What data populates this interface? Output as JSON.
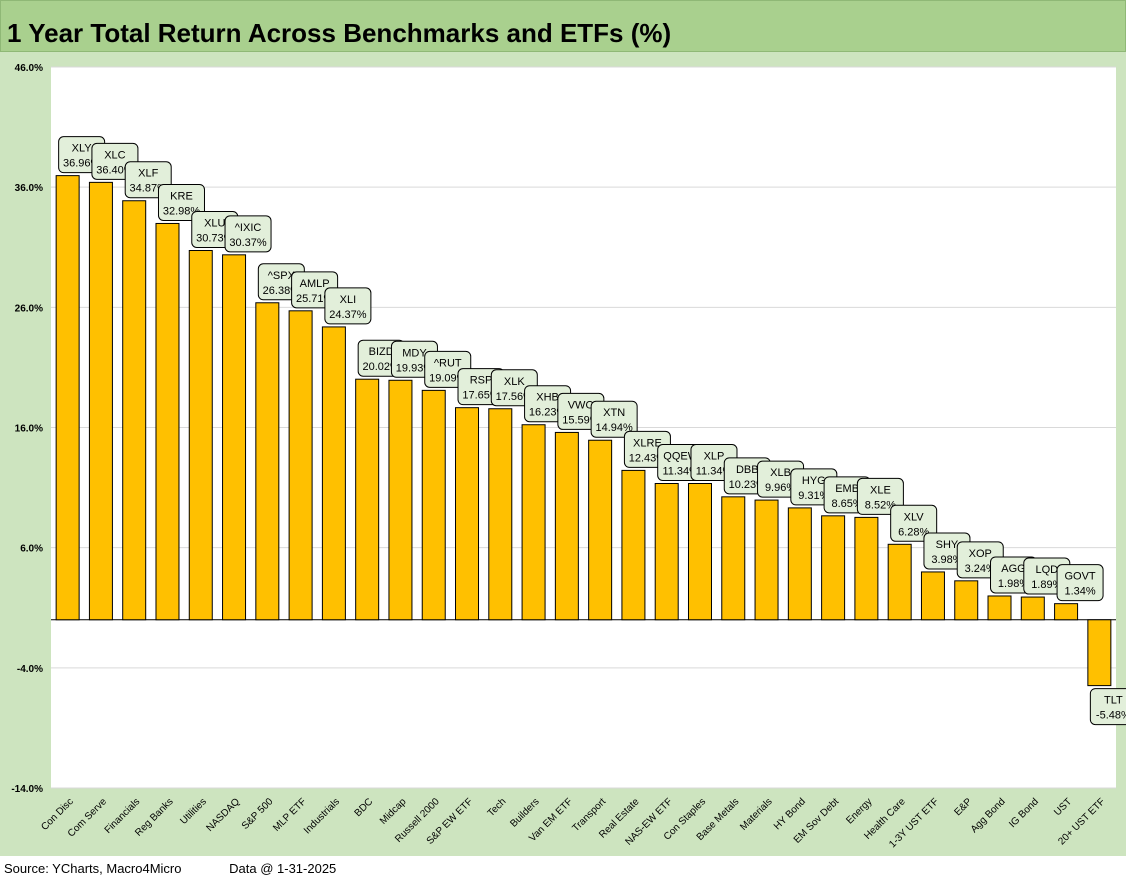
{
  "title": "1 Year Total Return Across Benchmarks and ETFs (%)",
  "footer": {
    "source": "Source: YCharts, Macro4Micro",
    "date": "Data @ 1-31-2025"
  },
  "colors": {
    "bar": "#ffc000",
    "frame": "#cde4bf",
    "title_bar": "#a9d08e",
    "label_box": "#e2efda"
  },
  "chart_data": {
    "type": "bar",
    "title": "1 Year Total Return Across Benchmarks and ETFs (%)",
    "ylim": [
      -14,
      46
    ],
    "yticks": [
      46,
      36,
      26,
      16,
      6,
      -4,
      -14
    ],
    "ytick_labels": [
      "46.0%",
      "36.0%",
      "26.0%",
      "16.0%",
      "6.0%",
      "-4.0%",
      "-14.0%"
    ],
    "grid": true,
    "categories": [
      "Con Disc",
      "Com Serve",
      "Financials",
      "Reg Banks",
      "Utilities",
      "NASDAQ",
      "S&P 500",
      "MLP ETF",
      "Industrials",
      "BDC",
      "Midcap",
      "Russell 2000",
      "S&P EW ETF",
      "Tech",
      "Builders",
      "Van EM ETF",
      "Transport",
      "Real Estate",
      "NAS-EW ETF",
      "Con Staples",
      "Base Metals",
      "Materials",
      "HY Bond",
      "EM Sov Debt",
      "Energy",
      "Health Care",
      "1-3Y UST ETF",
      "E&P",
      "Agg Bond",
      "IG Bond",
      "UST",
      "20+ UST ETF"
    ],
    "tickers": [
      "XLY",
      "XLC",
      "XLF",
      "KRE",
      "XLU",
      "^IXIC",
      "^SPX",
      "AMLP",
      "XLI",
      "BIZD",
      "MDY",
      "^RUT",
      "RSP",
      "XLK",
      "XHB",
      "VWO",
      "XTN",
      "XLRE",
      "QQEW",
      "XLP",
      "DBB",
      "XLB",
      "HYG",
      "EMB",
      "XLE",
      "XLV",
      "SHY",
      "XOP",
      "AGG",
      "LQD",
      "GOVT",
      "TLT"
    ],
    "values": [
      36.96,
      36.4,
      34.87,
      32.98,
      30.73,
      30.37,
      26.38,
      25.71,
      24.37,
      20.02,
      19.93,
      19.09,
      17.65,
      17.56,
      16.23,
      15.59,
      14.94,
      12.43,
      11.34,
      11.34,
      10.23,
      9.96,
      9.31,
      8.65,
      8.52,
      6.28,
      3.98,
      3.24,
      1.98,
      1.89,
      1.34,
      -5.48
    ],
    "value_labels": [
      "36.96%",
      "36.40%",
      "34.87%",
      "32.98%",
      "30.73%",
      "30.37%",
      "26.38%",
      "25.71%",
      "24.37%",
      "20.02%",
      "19.93%",
      "19.09%",
      "17.65%",
      "17.56%",
      "16.23%",
      "15.59%",
      "14.94%",
      "12.43%",
      "11.34%",
      "11.34%",
      "10.23%",
      "9.96%",
      "9.31%",
      "8.65%",
      "8.52%",
      "6.28%",
      "3.98%",
      "3.24%",
      "1.98%",
      "1.89%",
      "1.34%",
      "-5.48%"
    ]
  }
}
